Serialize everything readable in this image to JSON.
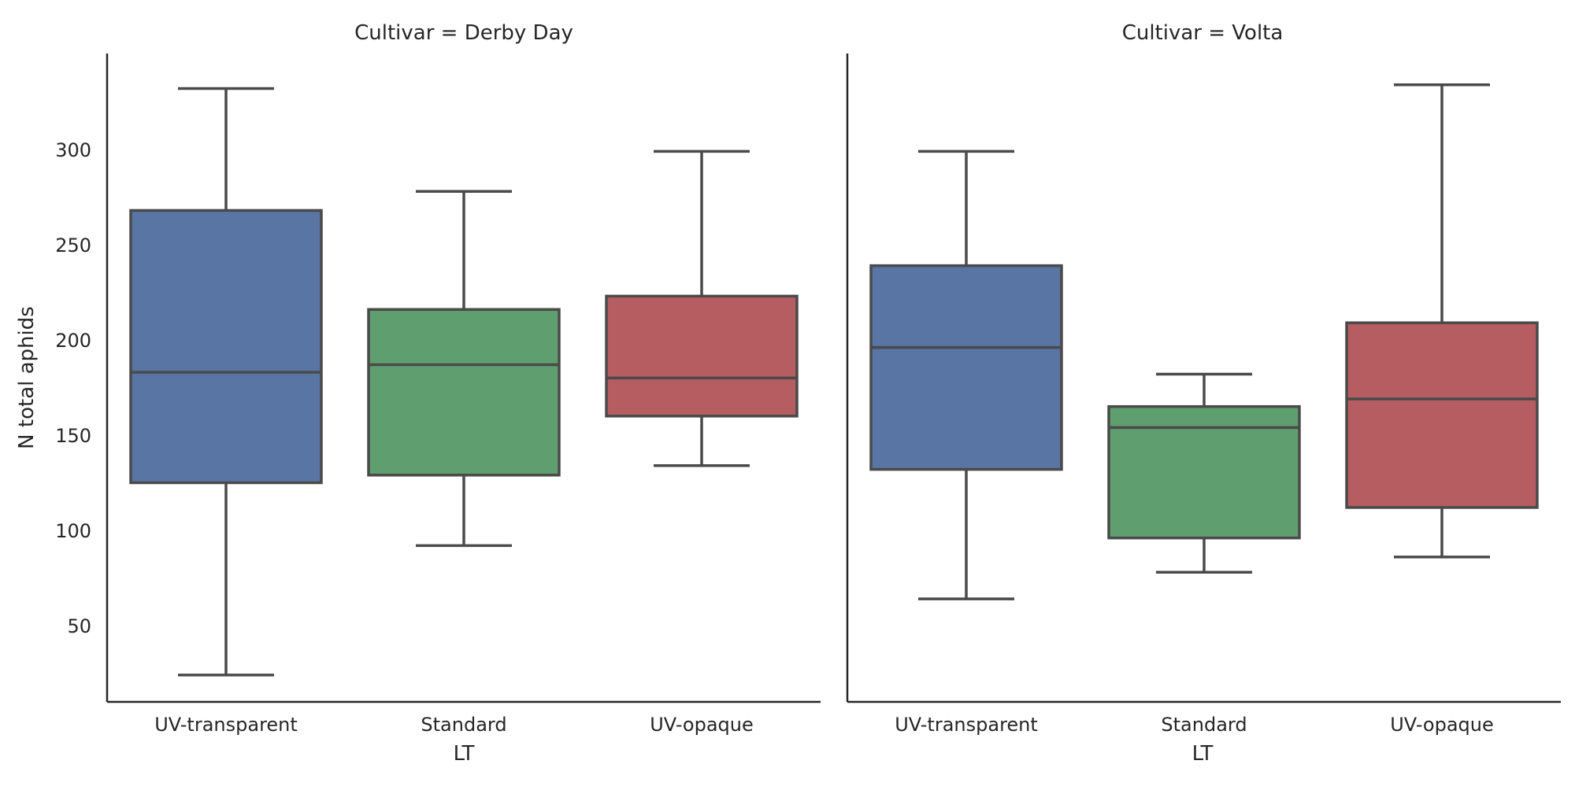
{
  "chart_data": {
    "type": "box",
    "facet_by": "Cultivar",
    "x_label": "LT",
    "y_label": "N total aphids",
    "y_ticks": [
      50,
      100,
      150,
      200,
      250,
      300
    ],
    "y_range": [
      10,
      350
    ],
    "categories": [
      "UV-transparent",
      "Standard",
      "UV-opaque"
    ],
    "colors": {
      "UV-transparent": "#5875a4",
      "Standard": "#5f9e6e",
      "UV-opaque": "#b55d60",
      "line": "#4a4a4a"
    },
    "panels": [
      {
        "title": "Cultivar = Derby Day",
        "boxes": [
          {
            "category": "UV-transparent",
            "whisker_low": 24,
            "q1": 125,
            "median": 183,
            "q3": 268,
            "whisker_high": 332
          },
          {
            "category": "Standard",
            "whisker_low": 92,
            "q1": 129,
            "median": 187,
            "q3": 216,
            "whisker_high": 278
          },
          {
            "category": "UV-opaque",
            "whisker_low": 134,
            "q1": 160,
            "median": 180,
            "q3": 223,
            "whisker_high": 299
          }
        ]
      },
      {
        "title": "Cultivar = Volta",
        "boxes": [
          {
            "category": "UV-transparent",
            "whisker_low": 64,
            "q1": 132,
            "median": 196,
            "q3": 239,
            "whisker_high": 299
          },
          {
            "category": "Standard",
            "whisker_low": 78,
            "q1": 96,
            "median": 154,
            "q3": 165,
            "whisker_high": 182
          },
          {
            "category": "UV-opaque",
            "whisker_low": 86,
            "q1": 112,
            "median": 169,
            "q3": 209,
            "whisker_high": 334
          }
        ]
      }
    ]
  }
}
